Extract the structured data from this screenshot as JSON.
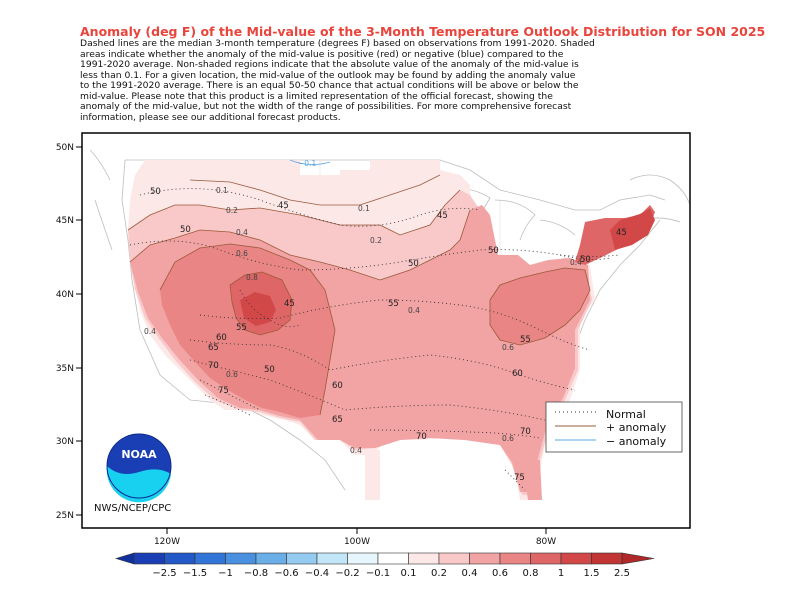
{
  "title": "Anomaly (deg F) of the Mid-value of the 3-Month Temperature Outlook Distribution for SON 2025",
  "description_lines": [
    "Dashed lines are the median 3-month temperature (degrees F) based on observations from 1991-2020.  Shaded",
    "areas indicate whether the anomaly of the mid-value is positive (red) or negative (blue) compared to the",
    "1991-2020 average.   Non-shaded regions indicate that the absolute value of the anomaly of the mid-value is",
    "less than 0.1.   For a given location, the mid-value of the outlook may be found by adding the anomaly value",
    "to the 1991-2020 average. There is an equal 50-50 chance that actual conditions will be above or below the",
    "mid-value. Please note that this product is a limited representation of the official forecast, showing the",
    "anomaly of the mid-value, but not the width of the range of possibilities. For more comprehensive forecast",
    "information, please see our additional forecast products."
  ],
  "latitude_labels": [
    "50N",
    "45N",
    "40N",
    "35N",
    "30N",
    "25N"
  ],
  "longitude_labels": [
    "120W",
    "100W",
    "80W"
  ],
  "legend": {
    "normal": "Normal",
    "positive": "+ anomaly",
    "negative": "− anomaly"
  },
  "credit": "NWS/NCEP/CPC",
  "logo_text": "NOAA",
  "colorbar": {
    "labels": [
      "−2.5",
      "−1.5",
      "−1",
      "−0.8",
      "−0.6",
      "−0.4",
      "−0.2",
      "−0.1",
      "0.1",
      "0.2",
      "0.4",
      "0.6",
      "0.8",
      "1",
      "1.5",
      "2.5"
    ],
    "colors": [
      "#1a3fb4",
      "#2258c8",
      "#3275d8",
      "#4a90e0",
      "#6aaee8",
      "#95cbf0",
      "#c3e5f8",
      "#e6f6fc",
      "#ffffff",
      "#fde8e8",
      "#f9c9c9",
      "#f2a3a3",
      "#ea8585",
      "#df6666",
      "#d24848",
      "#c23535"
    ]
  },
  "normal_contour_labels": [
    "45",
    "45",
    "45",
    "50",
    "50",
    "50",
    "50",
    "50",
    "55",
    "55",
    "60",
    "60",
    "60",
    "65",
    "65",
    "70",
    "70",
    "70",
    "75",
    "75"
  ],
  "anomaly_contour_labels": [
    "0.1",
    "0.1",
    "0.2",
    "0.2",
    "0.4",
    "0.4",
    "0.4",
    "0.6",
    "0.6",
    "0.6",
    "0.8",
    "0.4",
    "0.6",
    "0.4"
  ],
  "negative_anomaly_labels": [
    "−0.1"
  ],
  "colors": {
    "title": "#e8453c",
    "frame": "#000000",
    "normal_line": "#333333",
    "positive_line": "#9a5a3a",
    "negative_line": "#5aa7e0"
  }
}
